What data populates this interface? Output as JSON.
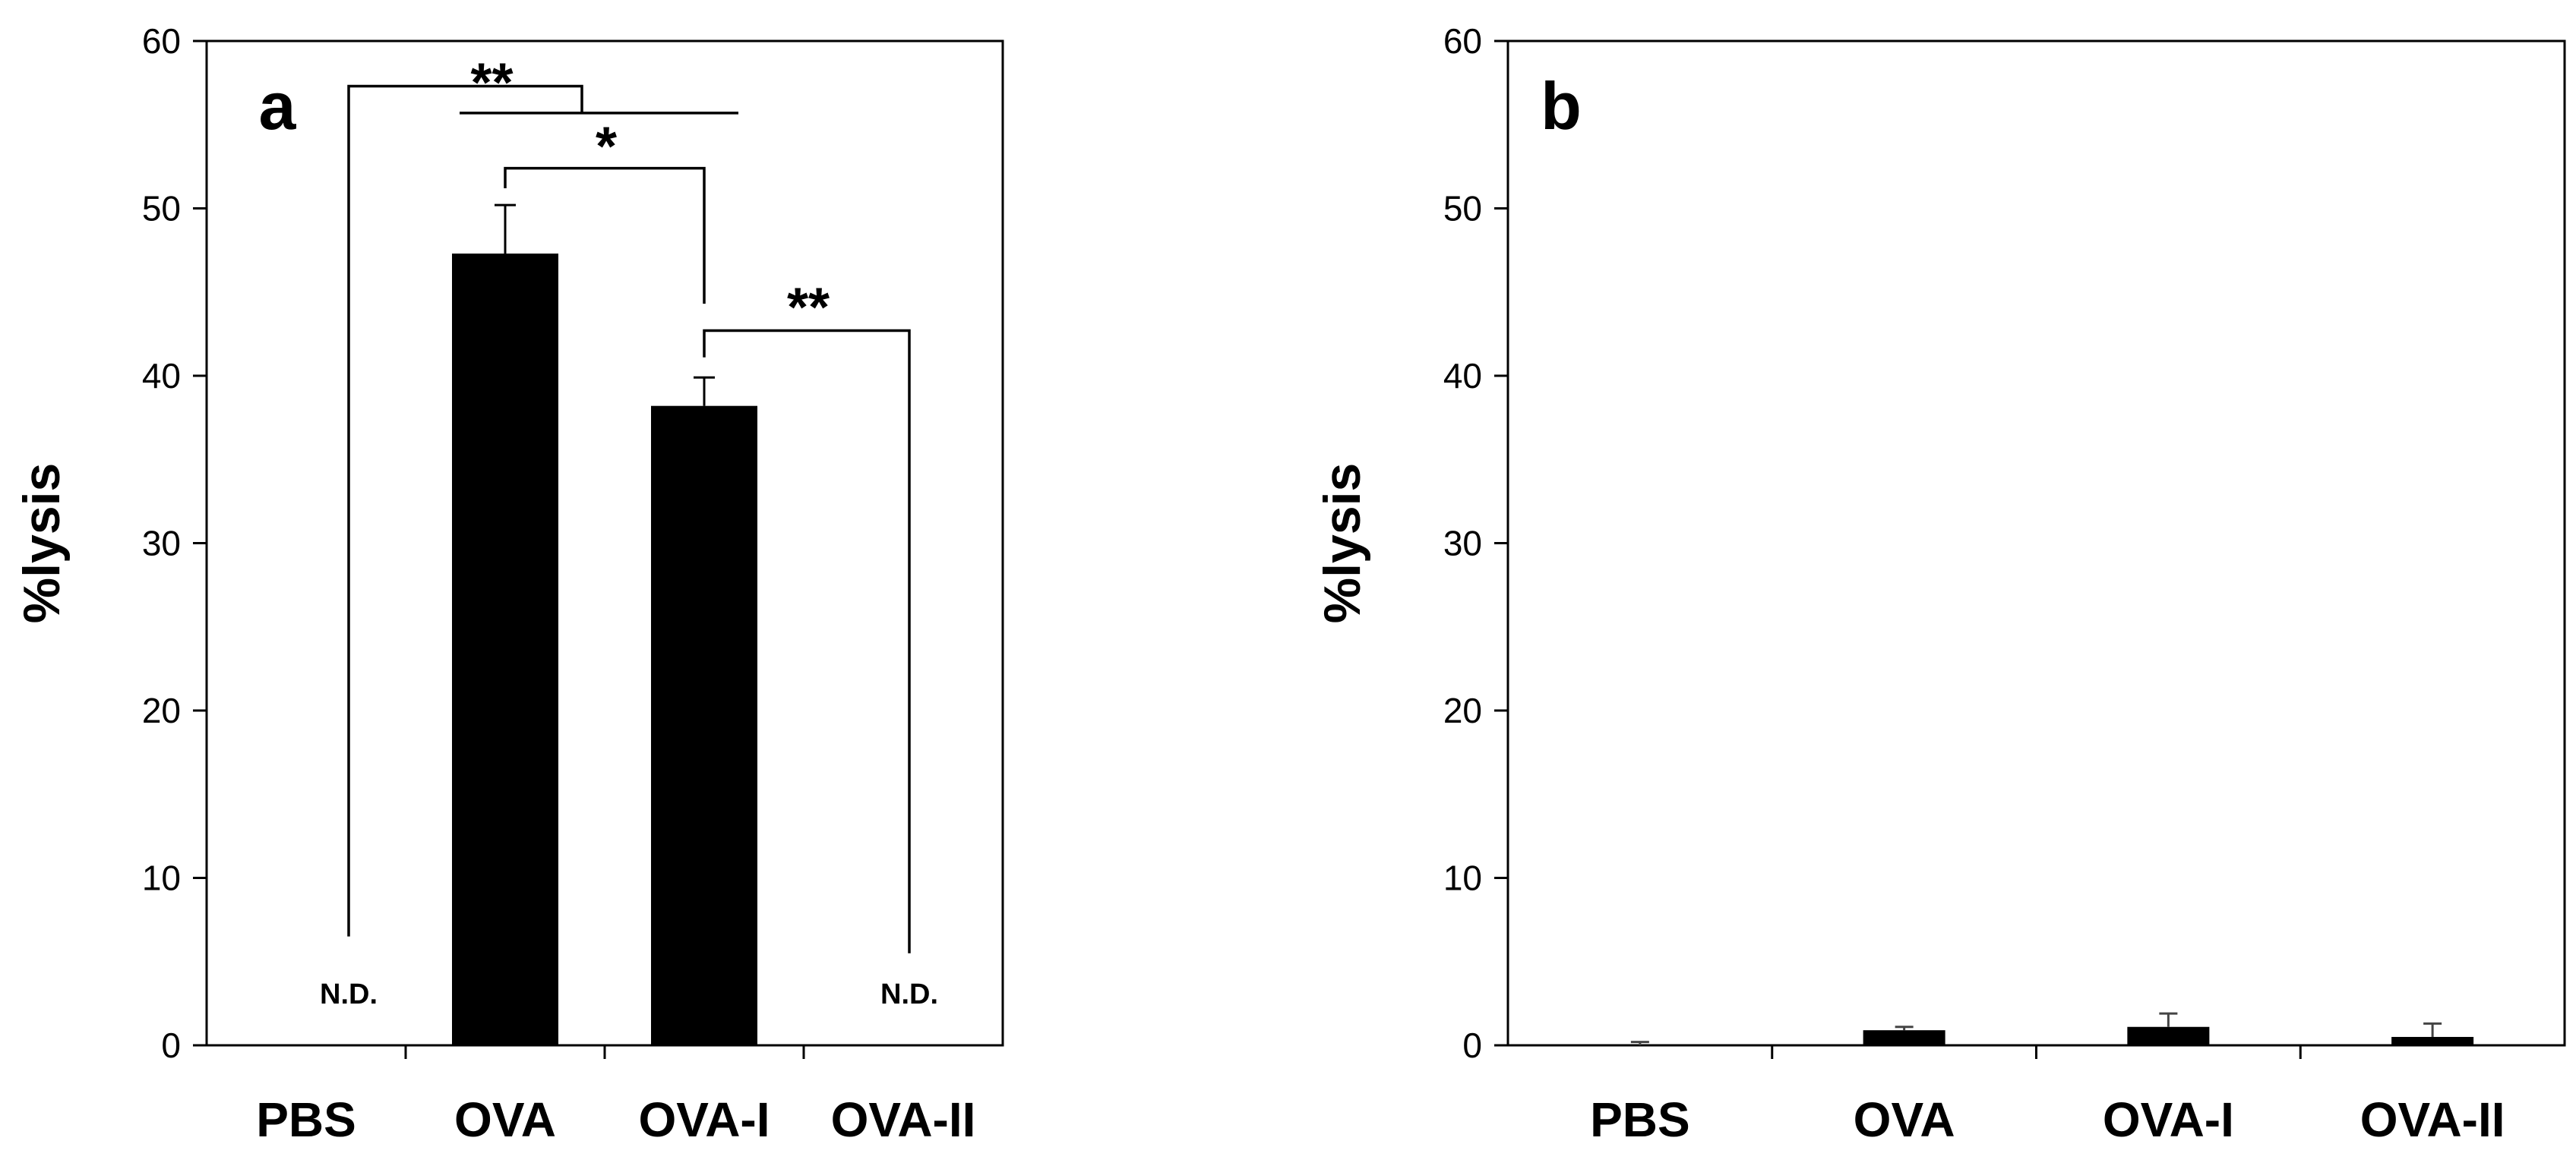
{
  "chart_data": [
    {
      "type": "bar",
      "panel": "a",
      "title": "",
      "xlabel": "",
      "ylabel": "%lysis",
      "ylim": [
        0,
        60
      ],
      "yticks": [
        0,
        10,
        20,
        30,
        40,
        50,
        60
      ],
      "categories": [
        "PBS",
        "OVA",
        "OVA-I",
        "OVA-II"
      ],
      "values": [
        null,
        47.3,
        38.2,
        null
      ],
      "errors": [
        null,
        2.9,
        1.7,
        null
      ],
      "value_labels": [
        "N.D.",
        "",
        "",
        "N.D."
      ],
      "bar_color": "#000000",
      "significance": [
        {
          "from": "PBS",
          "to": "OVA / OVA-I",
          "label": "**"
        },
        {
          "from": "OVA",
          "to": "OVA-I",
          "label": "*"
        },
        {
          "from": "OVA-I",
          "to": "OVA-II",
          "label": "**"
        }
      ]
    },
    {
      "type": "bar",
      "panel": "b",
      "title": "",
      "xlabel": "",
      "ylabel": "%lysis",
      "ylim": [
        0,
        60
      ],
      "yticks": [
        0,
        10,
        20,
        30,
        40,
        50,
        60
      ],
      "categories": [
        "PBS",
        "OVA",
        "OVA-I",
        "OVA-II"
      ],
      "values": [
        0.0,
        0.9,
        1.1,
        0.5
      ],
      "errors": [
        0.2,
        0.2,
        0.8,
        0.8
      ],
      "value_labels": [
        "",
        "",
        "",
        ""
      ],
      "bar_color": "#000000",
      "significance": []
    }
  ]
}
